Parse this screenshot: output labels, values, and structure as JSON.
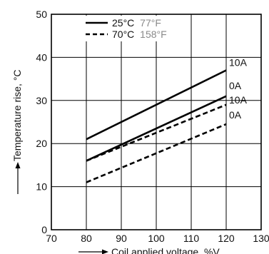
{
  "chart_data": {
    "type": "line",
    "ylabel": "Temperature rise, °C",
    "xlabel": "Coil applied voltage, %V",
    "xlim": [
      70,
      130
    ],
    "ylim": [
      0,
      50
    ],
    "xticks": [
      70,
      80,
      90,
      100,
      110,
      120,
      130
    ],
    "yticks": [
      0,
      10,
      20,
      30,
      40,
      50
    ],
    "x_tick_labels": [
      "70",
      "80",
      "90",
      "100",
      "110",
      "120",
      "130"
    ],
    "y_tick_labels": [
      "0",
      "10",
      "20",
      "30",
      "40",
      "50"
    ],
    "grid": true,
    "legend": {
      "placement": "top-left",
      "entries": [
        {
          "label_c": "25°C",
          "label_f": "77°F",
          "style": "solid"
        },
        {
          "label_c": "70°C",
          "label_f": "158°F",
          "style": "dashed"
        }
      ]
    },
    "series": [
      {
        "group": "25°C",
        "end_label": "10A",
        "style": "solid",
        "x": [
          80,
          120
        ],
        "y": [
          21,
          37
        ]
      },
      {
        "group": "25°C",
        "end_label": "0A",
        "style": "solid",
        "x": [
          80,
          120
        ],
        "y": [
          16,
          31
        ]
      },
      {
        "group": "70°C",
        "end_label": "10A",
        "style": "dashed",
        "x": [
          80,
          120
        ],
        "y": [
          16,
          29
        ]
      },
      {
        "group": "70°C",
        "end_label": "0A",
        "style": "dashed",
        "x": [
          80,
          120
        ],
        "y": [
          11,
          24.5
        ]
      }
    ],
    "colors": {
      "line": "#000000",
      "fahrenheit_text": "#8a8a8a"
    }
  }
}
